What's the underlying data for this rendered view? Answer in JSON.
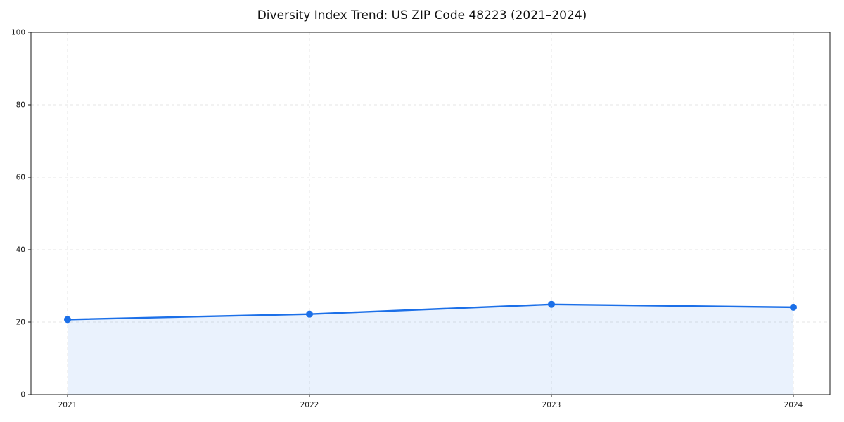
{
  "chart_data": {
    "type": "area",
    "title": "Diversity Index Trend: US ZIP Code 48223 (2021–2024)",
    "categories": [
      "2021",
      "2022",
      "2023",
      "2024"
    ],
    "series": [
      {
        "name": "Diversity Index",
        "values": [
          20.7,
          22.2,
          24.9,
          24.1
        ]
      }
    ],
    "xlabel": "",
    "ylabel": "",
    "ylim": [
      0,
      100
    ],
    "yticks": [
      0,
      20,
      40,
      60,
      80,
      100
    ],
    "grid": true,
    "grid_style": "dashed",
    "legend": false,
    "colors": {
      "line": "#1b6fe8",
      "marker": "#1b6fe8",
      "fill": "#1b6fe8",
      "fill_opacity": "0.09",
      "grid": "#e4e4e4",
      "spine": "#1a1a1a",
      "text": "#1a1a1a"
    }
  }
}
